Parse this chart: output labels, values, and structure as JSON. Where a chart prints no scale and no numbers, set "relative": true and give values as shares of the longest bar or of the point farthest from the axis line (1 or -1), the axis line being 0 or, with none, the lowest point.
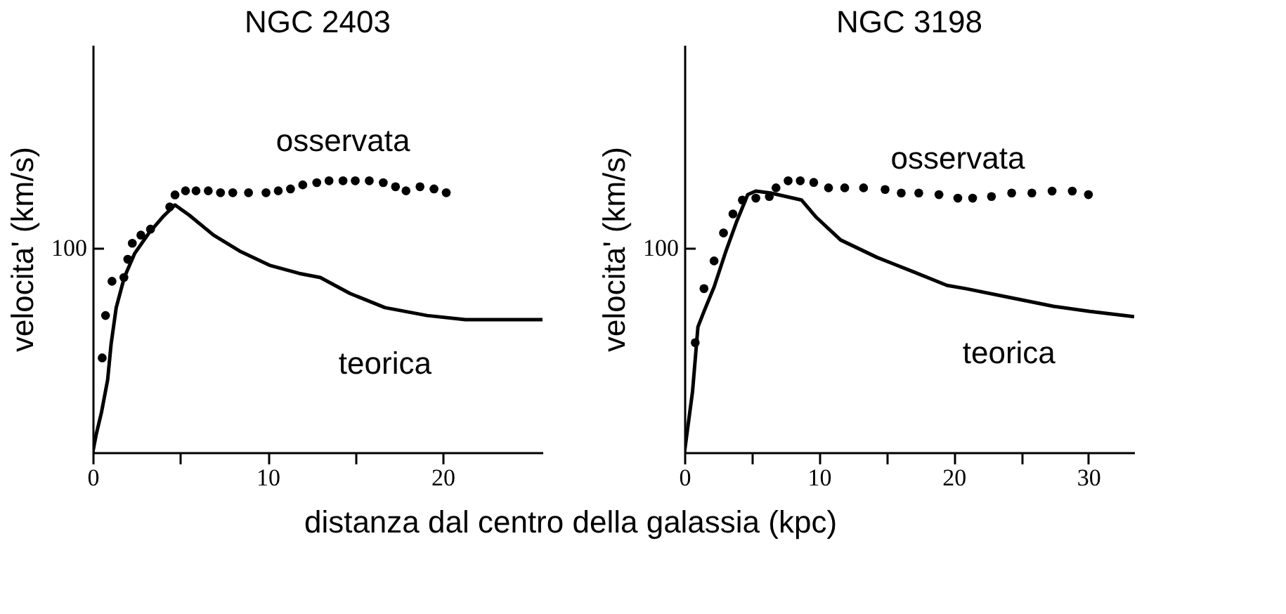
{
  "chart_data": [
    {
      "type": "line",
      "title": "NGC 2403",
      "xlabel": "distanza dal centro della galassia (kpc)",
      "ylabel": "velocita' (km/s)",
      "relative": true,
      "xlim": [
        0,
        25.7
      ],
      "xticks": [
        0,
        {
          "value": 5,
          "label": null
        },
        10,
        {
          "value": 15,
          "label": null
        },
        20
      ],
      "annotations": [
        "100"
      ],
      "series": [
        {
          "name": "osservata",
          "type": "scatter",
          "marker": "circle",
          "color": "#000000",
          "x": [
            0.54,
            0.73,
            1.1,
            1.78,
            2.0,
            2.26,
            2.75,
            3.3,
            4.4,
            4.7,
            5.3,
            5.9,
            6.6,
            7.3,
            8.0,
            8.9,
            9.9,
            10.6,
            11.3,
            12.0,
            12.8,
            13.5,
            14.3,
            15.0,
            15.8,
            16.6,
            17.3,
            17.9,
            18.7,
            19.5,
            20.2
          ],
          "values": [
            0.348,
            0.504,
            0.63,
            0.644,
            0.711,
            0.77,
            0.8,
            0.822,
            0.904,
            0.948,
            0.963,
            0.963,
            0.963,
            0.956,
            0.956,
            0.956,
            0.956,
            0.963,
            0.97,
            0.985,
            0.993,
            1,
            1,
            1,
            1,
            0.993,
            0.978,
            0.963,
            0.978,
            0.97,
            0.956
          ]
        },
        {
          "name": "teorica",
          "type": "line",
          "line_style": "solid",
          "color": "#000000",
          "x": [
            0,
            0.2,
            0.5,
            0.85,
            1.05,
            1.34,
            1.8,
            2.4,
            3.2,
            4.0,
            4.7,
            5.5,
            6.9,
            8.4,
            10.1,
            11.8,
            13.0,
            14.7,
            16.7,
            19.1,
            21.3,
            25.7
          ],
          "values": [
            0,
            0.067,
            0.148,
            0.267,
            0.4,
            0.533,
            0.644,
            0.733,
            0.807,
            0.867,
            0.911,
            0.874,
            0.8,
            0.741,
            0.689,
            0.659,
            0.644,
            0.585,
            0.533,
            0.504,
            0.489,
            0.489
          ]
        }
      ]
    },
    {
      "type": "line",
      "title": "NGC 3198",
      "ylabel": "velocita' (km/s)",
      "relative": true,
      "xlim": [
        0,
        33.4
      ],
      "xticks": [
        0,
        {
          "value": 5,
          "label": null
        },
        10,
        {
          "value": 15,
          "label": null
        },
        20,
        {
          "value": 25,
          "label": null
        },
        30
      ],
      "annotations": [
        "100"
      ],
      "series": [
        {
          "name": "osservata",
          "type": "scatter",
          "marker": "circle",
          "color": "#000000",
          "x": [
            0.8,
            1.45,
            2.2,
            2.9,
            3.6,
            4.3,
            5.3,
            6.3,
            6.8,
            7.7,
            8.6,
            9.6,
            10.7,
            11.9,
            13.3,
            14.9,
            16.1,
            17.4,
            18.9,
            20.3,
            21.4,
            22.8,
            24.3,
            25.8,
            27.3,
            28.8,
            30.0
          ],
          "values": [
            0.404,
            0.603,
            0.705,
            0.808,
            0.878,
            0.929,
            0.936,
            0.942,
            0.974,
            1,
            1,
            0.994,
            0.974,
            0.974,
            0.974,
            0.968,
            0.955,
            0.955,
            0.949,
            0.936,
            0.936,
            0.942,
            0.955,
            0.955,
            0.962,
            0.962,
            0.949
          ]
        },
        {
          "name": "teorica",
          "type": "line",
          "line_style": "solid",
          "color": "#000000",
          "x": [
            0,
            0.6,
            1.0,
            1.45,
            2.2,
            3.1,
            3.9,
            4.7,
            5.3,
            6.4,
            8.7,
            9.8,
            11.6,
            14.3,
            16.9,
            19.5,
            20.9,
            24.1,
            27.4,
            30.1,
            33.4
          ],
          "values": [
            0,
            0.224,
            0.462,
            0.519,
            0.609,
            0.744,
            0.853,
            0.949,
            0.962,
            0.955,
            0.929,
            0.865,
            0.782,
            0.718,
            0.667,
            0.615,
            0.603,
            0.571,
            0.538,
            0.519,
            0.5
          ]
        }
      ]
    }
  ]
}
